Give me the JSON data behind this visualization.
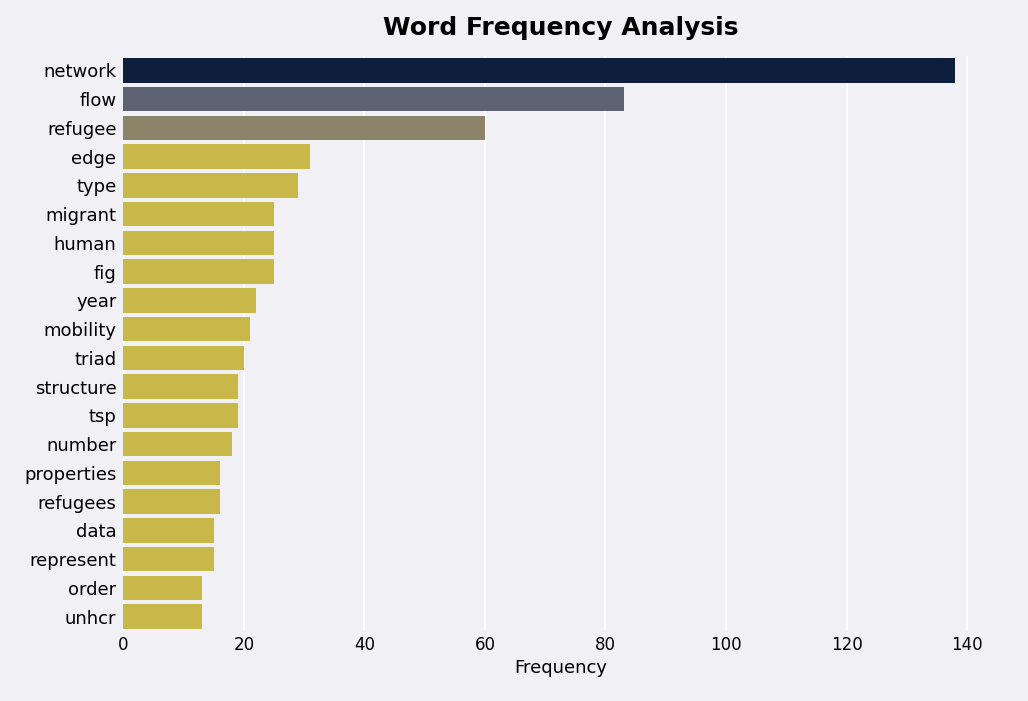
{
  "title": "Word Frequency Analysis",
  "xlabel": "Frequency",
  "categories": [
    "network",
    "flow",
    "refugee",
    "edge",
    "type",
    "migrant",
    "human",
    "fig",
    "year",
    "mobility",
    "triad",
    "structure",
    "tsp",
    "number",
    "properties",
    "refugees",
    "data",
    "represent",
    "order",
    "unhcr"
  ],
  "values": [
    138,
    83,
    60,
    31,
    29,
    25,
    25,
    25,
    22,
    21,
    20,
    19,
    19,
    18,
    16,
    16,
    15,
    15,
    13,
    13
  ],
  "bar_colors": [
    "#0d1f3c",
    "#5c6473",
    "#8b8468",
    "#c8b84a",
    "#c8b84a",
    "#c8b84a",
    "#c8b84a",
    "#c8b84a",
    "#c8b84a",
    "#c8b84a",
    "#c8b84a",
    "#c8b84a",
    "#c8b84a",
    "#c8b84a",
    "#c8b84a",
    "#c8b84a",
    "#c8b84a",
    "#c8b84a",
    "#c8b84a",
    "#c8b84a"
  ],
  "xlim": [
    0,
    145
  ],
  "xticks": [
    0,
    20,
    40,
    60,
    80,
    100,
    120,
    140
  ],
  "background_color": "#f0f0f5",
  "title_fontsize": 18,
  "label_fontsize": 13,
  "tick_fontsize": 12,
  "bar_height": 0.85
}
